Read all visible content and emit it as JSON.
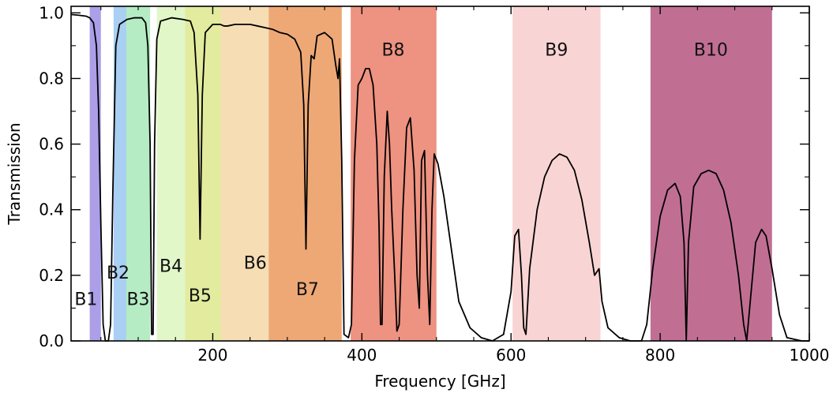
{
  "chart_data": {
    "type": "line",
    "title": "",
    "xlabel": "Frequency [GHz]",
    "ylabel": "Transmission",
    "xlim": [
      10,
      1000
    ],
    "ylim": [
      0,
      1.02
    ],
    "x_ticks": [
      200,
      400,
      600,
      800,
      1000
    ],
    "x_tick_labels": [
      "200",
      "400",
      "600",
      "800",
      "1000"
    ],
    "y_ticks": [
      0.0,
      0.2,
      0.4,
      0.6,
      0.8,
      1.0
    ],
    "y_tick_labels": [
      "0.0",
      "0.2",
      "0.4",
      "0.6",
      "0.8",
      "1.0"
    ],
    "grid": false,
    "bands": [
      {
        "label": "B1",
        "x0": 35,
        "x1": 50,
        "color": "#ac9fe8",
        "label_x": 30,
        "label_y": 0.11
      },
      {
        "label": "B2",
        "x0": 67,
        "x1": 90,
        "color": "#a9cff2",
        "label_x": 73,
        "label_y": 0.19
      },
      {
        "label": "B3",
        "x0": 84,
        "x1": 116,
        "color": "#b5ecc4",
        "label_x": 100,
        "label_y": 0.11
      },
      {
        "label": "B4",
        "x0": 125,
        "x1": 163,
        "color": "#e2f7c8",
        "label_x": 144,
        "label_y": 0.21
      },
      {
        "label": "B5",
        "x0": 163,
        "x1": 211,
        "color": "#e2eb9e",
        "label_x": 183,
        "label_y": 0.12
      },
      {
        "label": "B6",
        "x0": 211,
        "x1": 275,
        "color": "#f6ddb4",
        "label_x": 257,
        "label_y": 0.22
      },
      {
        "label": "B7",
        "x0": 275,
        "x1": 373,
        "color": "#eea876",
        "label_x": 327,
        "label_y": 0.14
      },
      {
        "label": "B8",
        "x0": 385,
        "x1": 500,
        "color": "#ee9281",
        "label_x": 442,
        "label_y": 0.87
      },
      {
        "label": "B9",
        "x0": 602,
        "x1": 720,
        "color": "#f8d5d4",
        "label_x": 661,
        "label_y": 0.87
      },
      {
        "label": "B10",
        "x0": 787,
        "x1": 950,
        "color": "#c06f93",
        "label_x": 868,
        "label_y": 0.87
      }
    ],
    "series": [
      {
        "values": [
          [
            10,
            0.995
          ],
          [
            20,
            0.993
          ],
          [
            30,
            0.99
          ],
          [
            35,
            0.985
          ],
          [
            40,
            0.97
          ],
          [
            44,
            0.9
          ],
          [
            47,
            0.7
          ],
          [
            50,
            0.35
          ],
          [
            53,
            0.05
          ],
          [
            56,
            0.0
          ],
          [
            60,
            0.0
          ],
          [
            63,
            0.05
          ],
          [
            66,
            0.45
          ],
          [
            70,
            0.9
          ],
          [
            75,
            0.965
          ],
          [
            85,
            0.98
          ],
          [
            95,
            0.985
          ],
          [
            105,
            0.985
          ],
          [
            110,
            0.97
          ],
          [
            113,
            0.9
          ],
          [
            116,
            0.6
          ],
          [
            118,
            0.02
          ],
          [
            120,
            0.02
          ],
          [
            122,
            0.6
          ],
          [
            125,
            0.92
          ],
          [
            130,
            0.975
          ],
          [
            145,
            0.985
          ],
          [
            160,
            0.98
          ],
          [
            170,
            0.975
          ],
          [
            175,
            0.94
          ],
          [
            180,
            0.75
          ],
          [
            183,
            0.31
          ],
          [
            186,
            0.75
          ],
          [
            190,
            0.94
          ],
          [
            200,
            0.965
          ],
          [
            210,
            0.965
          ],
          [
            215,
            0.96
          ],
          [
            220,
            0.96
          ],
          [
            230,
            0.965
          ],
          [
            240,
            0.965
          ],
          [
            250,
            0.965
          ],
          [
            260,
            0.96
          ],
          [
            270,
            0.955
          ],
          [
            280,
            0.95
          ],
          [
            290,
            0.94
          ],
          [
            300,
            0.935
          ],
          [
            310,
            0.92
          ],
          [
            318,
            0.88
          ],
          [
            322,
            0.72
          ],
          [
            325,
            0.28
          ],
          [
            328,
            0.72
          ],
          [
            332,
            0.87
          ],
          [
            336,
            0.86
          ],
          [
            340,
            0.93
          ],
          [
            350,
            0.94
          ],
          [
            360,
            0.92
          ],
          [
            365,
            0.84
          ],
          [
            368,
            0.8
          ],
          [
            370,
            0.86
          ],
          [
            373,
            0.55
          ],
          [
            376,
            0.02
          ],
          [
            382,
            0.01
          ],
          [
            386,
            0.05
          ],
          [
            390,
            0.55
          ],
          [
            395,
            0.78
          ],
          [
            400,
            0.8
          ],
          [
            405,
            0.83
          ],
          [
            410,
            0.83
          ],
          [
            415,
            0.78
          ],
          [
            420,
            0.6
          ],
          [
            423,
            0.35
          ],
          [
            425,
            0.05
          ],
          [
            427,
            0.05
          ],
          [
            430,
            0.5
          ],
          [
            434,
            0.7
          ],
          [
            437,
            0.6
          ],
          [
            440,
            0.4
          ],
          [
            444,
            0.2
          ],
          [
            447,
            0.03
          ],
          [
            450,
            0.05
          ],
          [
            455,
            0.4
          ],
          [
            460,
            0.65
          ],
          [
            465,
            0.68
          ],
          [
            470,
            0.52
          ],
          [
            474,
            0.2
          ],
          [
            477,
            0.1
          ],
          [
            480,
            0.55
          ],
          [
            484,
            0.58
          ],
          [
            488,
            0.2
          ],
          [
            491,
            0.05
          ],
          [
            494,
            0.4
          ],
          [
            497,
            0.57
          ],
          [
            502,
            0.54
          ],
          [
            510,
            0.44
          ],
          [
            520,
            0.28
          ],
          [
            530,
            0.12
          ],
          [
            545,
            0.04
          ],
          [
            560,
            0.01
          ],
          [
            575,
            0.0
          ],
          [
            590,
            0.02
          ],
          [
            600,
            0.15
          ],
          [
            605,
            0.32
          ],
          [
            610,
            0.34
          ],
          [
            614,
            0.2
          ],
          [
            617,
            0.04
          ],
          [
            620,
            0.02
          ],
          [
            625,
            0.22
          ],
          [
            635,
            0.4
          ],
          [
            645,
            0.5
          ],
          [
            655,
            0.55
          ],
          [
            665,
            0.57
          ],
          [
            675,
            0.56
          ],
          [
            685,
            0.52
          ],
          [
            695,
            0.43
          ],
          [
            705,
            0.3
          ],
          [
            712,
            0.2
          ],
          [
            718,
            0.22
          ],
          [
            722,
            0.12
          ],
          [
            730,
            0.04
          ],
          [
            745,
            0.01
          ],
          [
            760,
            0.0
          ],
          [
            775,
            0.0
          ],
          [
            782,
            0.05
          ],
          [
            790,
            0.22
          ],
          [
            800,
            0.38
          ],
          [
            810,
            0.46
          ],
          [
            820,
            0.48
          ],
          [
            827,
            0.44
          ],
          [
            832,
            0.3
          ],
          [
            835,
            0.0
          ],
          [
            838,
            0.3
          ],
          [
            845,
            0.47
          ],
          [
            855,
            0.51
          ],
          [
            865,
            0.52
          ],
          [
            875,
            0.51
          ],
          [
            885,
            0.46
          ],
          [
            895,
            0.36
          ],
          [
            905,
            0.2
          ],
          [
            912,
            0.05
          ],
          [
            916,
            0.0
          ],
          [
            920,
            0.1
          ],
          [
            928,
            0.3
          ],
          [
            936,
            0.34
          ],
          [
            942,
            0.32
          ],
          [
            950,
            0.22
          ],
          [
            960,
            0.08
          ],
          [
            970,
            0.01
          ],
          [
            990,
            0.0
          ],
          [
            1000,
            0.0
          ]
        ]
      }
    ]
  }
}
